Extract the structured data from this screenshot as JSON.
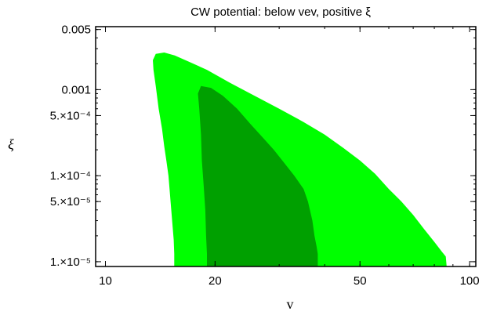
{
  "chart_data": {
    "type": "area",
    "title": "CW potential: below vev, positive ξ",
    "xlabel": "v",
    "ylabel": "ξ",
    "xscale": "log",
    "yscale": "log",
    "xlim": [
      9.4,
      104
    ],
    "ylim": [
      8.8e-06,
      0.0054
    ],
    "x_ticks": [
      {
        "value": 10,
        "label": "10"
      },
      {
        "value": 20,
        "label": "20"
      },
      {
        "value": 50,
        "label": "50"
      },
      {
        "value": 100,
        "label": "100"
      }
    ],
    "y_ticks": [
      {
        "value": 0.005,
        "label": "0.005"
      },
      {
        "value": 0.001,
        "label": "0.001"
      },
      {
        "value": 0.0005,
        "label": "5.×10⁻⁴"
      },
      {
        "value": 0.0001,
        "label": "1.×10⁻⁴"
      },
      {
        "value": 5e-05,
        "label": "5.×10⁻⁵"
      },
      {
        "value": 1e-05,
        "label": "1.×10⁻⁵"
      }
    ],
    "regions": [
      {
        "color": "#00ff00",
        "boundary": [
          [
            15.45,
            8.8e-06
          ],
          [
            15.45,
            1.23e-05
          ],
          [
            15.4,
            1.8e-05
          ],
          [
            15.3,
            2.5e-05
          ],
          [
            15.2,
            3.5e-05
          ],
          [
            15.1,
            5e-05
          ],
          [
            15.0,
            7e-05
          ],
          [
            14.9,
            0.0001
          ],
          [
            14.7,
            0.00015
          ],
          [
            14.5,
            0.00022
          ],
          [
            14.3,
            0.00035
          ],
          [
            14.0,
            0.0006
          ],
          [
            13.75,
            0.0011
          ],
          [
            13.55,
            0.0017
          ],
          [
            13.5,
            0.0022
          ],
          [
            13.75,
            0.0026
          ],
          [
            14.5,
            0.0027
          ],
          [
            15.5,
            0.0025
          ],
          [
            17.0,
            0.0021
          ],
          [
            19.0,
            0.0017
          ],
          [
            22.0,
            0.0012
          ],
          [
            25.0,
            0.0009
          ],
          [
            30.0,
            0.0006
          ],
          [
            35.0,
            0.00042
          ],
          [
            40.0,
            0.0003
          ],
          [
            45.0,
            0.00021
          ],
          [
            50.0,
            0.00015
          ],
          [
            55.0,
            0.000105
          ],
          [
            60.0,
            7e-05
          ],
          [
            65.0,
            5e-05
          ],
          [
            70.0,
            3.5e-05
          ],
          [
            75.0,
            2.4e-05
          ],
          [
            80.0,
            1.7e-05
          ],
          [
            84.0,
            1.3e-05
          ],
          [
            86.0,
            1.15e-05
          ],
          [
            86.5,
            8.8e-06
          ]
        ]
      },
      {
        "color": "#00a000",
        "boundary": [
          [
            19.0,
            8.8e-06
          ],
          [
            19.0,
            1.23e-05
          ],
          [
            18.9,
            2e-05
          ],
          [
            18.8,
            4e-05
          ],
          [
            18.6,
            8e-05
          ],
          [
            18.4,
            0.00015
          ],
          [
            18.3,
            0.0003
          ],
          [
            18.1,
            0.0006
          ],
          [
            17.95,
            0.0009
          ],
          [
            18.3,
            0.0011
          ],
          [
            19.5,
            0.00105
          ],
          [
            21.0,
            0.00085
          ],
          [
            23.0,
            0.0006
          ],
          [
            25.0,
            0.0004
          ],
          [
            27.0,
            0.00028
          ],
          [
            29.0,
            0.0002
          ],
          [
            31.0,
            0.00014
          ],
          [
            33.0,
            0.0001
          ],
          [
            35.0,
            7e-05
          ],
          [
            36.0,
            5e-05
          ],
          [
            37.0,
            3e-05
          ],
          [
            37.5,
            2e-05
          ],
          [
            38.0,
            1.5e-05
          ],
          [
            38.3,
            1.23e-05
          ],
          [
            38.3,
            8.8e-06
          ]
        ]
      }
    ]
  }
}
